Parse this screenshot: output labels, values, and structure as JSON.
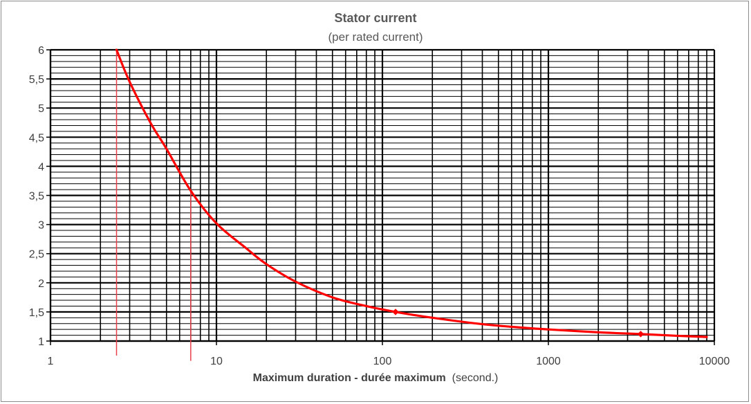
{
  "chart_data": {
    "type": "line",
    "title": "Stator current",
    "subtitle": "(per rated current)",
    "xlabel_bold": "Maximum duration - durée maximum",
    "xlabel_unit": "(second.)",
    "x_scale": "log",
    "xlim": [
      1,
      10000
    ],
    "ylim": [
      1,
      6
    ],
    "x_ticks": [
      1,
      10,
      100,
      1000,
      10000
    ],
    "x_tick_labels": [
      "1",
      "10",
      "100",
      "1000",
      "10000"
    ],
    "y_ticks": [
      1,
      1.5,
      2,
      2.5,
      3,
      3.5,
      4,
      4.5,
      5,
      5.5,
      6
    ],
    "y_tick_labels": [
      "1",
      "1,5",
      "2",
      "2,5",
      "3",
      "3,5",
      "4",
      "4,5",
      "5",
      "5,5",
      "6"
    ],
    "y_minor_step": 0.1,
    "grid": true,
    "series": [
      {
        "color": "#ff0000",
        "x": [
          2.5,
          3,
          4,
          5,
          7,
          10,
          15,
          20,
          30,
          50,
          80,
          120,
          200,
          400,
          700,
          1000,
          2000,
          3600,
          6000,
          9000
        ],
        "y": [
          6,
          5.45,
          4.75,
          4.3,
          3.58,
          3.02,
          2.6,
          2.32,
          2.02,
          1.75,
          1.6,
          1.5,
          1.4,
          1.29,
          1.23,
          1.2,
          1.15,
          1.12,
          1.09,
          1.07
        ],
        "markers": [
          {
            "x": 120,
            "y": 1.5
          },
          {
            "x": 3600,
            "y": 1.12
          }
        ]
      }
    ],
    "reference_lines": [
      {
        "x": 2.5,
        "y_from": 0.75,
        "y_to": 6,
        "color": "#e8404a"
      },
      {
        "x": 7,
        "y_from": 0.66,
        "y_to": 3.58,
        "color": "#e8404a"
      }
    ]
  }
}
